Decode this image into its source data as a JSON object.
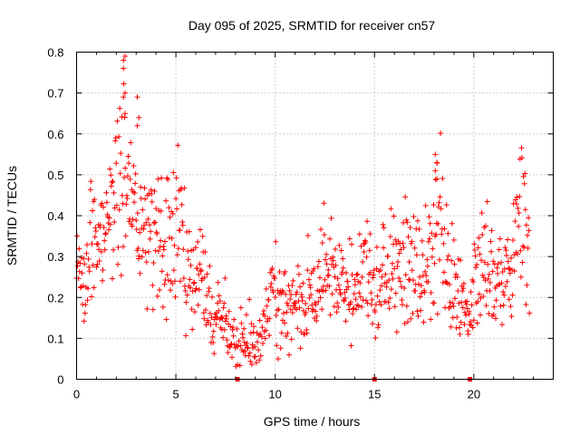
{
  "chart_data": {
    "type": "scatter",
    "title": "Day 095 of 2025, SRMTID for receiver cn57",
    "xlabel": "GPS time / hours",
    "ylabel": "SRMTID / TECUs",
    "xlim": [
      0,
      24
    ],
    "ylim": [
      0,
      0.8
    ],
    "xticks": [
      0,
      5,
      10,
      15,
      20
    ],
    "yticks": [
      0,
      0.1,
      0.2,
      0.3,
      0.4,
      0.5,
      0.6,
      0.7,
      0.8
    ],
    "xtick_labels": [
      "0",
      "5",
      "10",
      "15",
      "20"
    ],
    "ytick_labels": [
      "0",
      "0.1",
      "0.2",
      "0.3",
      "0.4",
      "0.5",
      "0.6",
      "0.7",
      "0.8"
    ],
    "grid": true,
    "marker": "+",
    "color": "#ff0000",
    "series": [
      {
        "name": "SRMTID",
        "trend": [
          [
            0.0,
            0.28
          ],
          [
            0.2,
            0.27
          ],
          [
            0.4,
            0.2
          ],
          [
            0.6,
            0.3
          ],
          [
            0.8,
            0.38
          ],
          [
            1.0,
            0.36
          ],
          [
            1.3,
            0.33
          ],
          [
            1.6,
            0.38
          ],
          [
            2.0,
            0.44
          ],
          [
            2.3,
            0.47
          ],
          [
            2.6,
            0.48
          ],
          [
            3.0,
            0.44
          ],
          [
            3.3,
            0.38
          ],
          [
            3.6,
            0.35
          ],
          [
            4.0,
            0.33
          ],
          [
            4.4,
            0.32
          ],
          [
            4.8,
            0.37
          ],
          [
            5.2,
            0.4
          ],
          [
            5.5,
            0.31
          ],
          [
            5.8,
            0.24
          ],
          [
            6.1,
            0.27
          ],
          [
            6.4,
            0.25
          ],
          [
            6.8,
            0.16
          ],
          [
            7.2,
            0.15
          ],
          [
            7.6,
            0.12
          ],
          [
            8.0,
            0.07
          ],
          [
            8.4,
            0.1
          ],
          [
            8.8,
            0.1
          ],
          [
            9.2,
            0.09
          ],
          [
            9.6,
            0.16
          ],
          [
            10.0,
            0.22
          ],
          [
            10.3,
            0.17
          ],
          [
            10.7,
            0.16
          ],
          [
            11.2,
            0.18
          ],
          [
            11.6,
            0.19
          ],
          [
            12.0,
            0.2
          ],
          [
            12.5,
            0.26
          ],
          [
            13.0,
            0.24
          ],
          [
            13.5,
            0.22
          ],
          [
            14.0,
            0.2
          ],
          [
            14.5,
            0.27
          ],
          [
            15.0,
            0.22
          ],
          [
            15.5,
            0.24
          ],
          [
            16.0,
            0.27
          ],
          [
            16.5,
            0.3
          ],
          [
            17.0,
            0.24
          ],
          [
            17.5,
            0.26
          ],
          [
            18.0,
            0.3
          ],
          [
            18.3,
            0.39
          ],
          [
            18.7,
            0.27
          ],
          [
            19.0,
            0.26
          ],
          [
            19.3,
            0.22
          ],
          [
            19.6,
            0.14
          ],
          [
            20.0,
            0.25
          ],
          [
            20.5,
            0.32
          ],
          [
            21.0,
            0.24
          ],
          [
            21.5,
            0.25
          ],
          [
            22.0,
            0.3
          ],
          [
            22.4,
            0.38
          ],
          [
            22.8,
            0.34
          ]
        ],
        "bursts": [
          {
            "x": 2.4,
            "values": [
              0.78,
              0.79,
              0.76,
              0.7,
              0.69,
              0.65
            ]
          },
          {
            "x": 3.1,
            "values": [
              0.69,
              0.64,
              0.62
            ]
          },
          {
            "x": 18.1,
            "values": [
              0.55,
              0.53,
              0.51,
              0.49
            ]
          }
        ],
        "zeros": [
          8.1,
          15.0,
          19.8
        ]
      }
    ]
  }
}
